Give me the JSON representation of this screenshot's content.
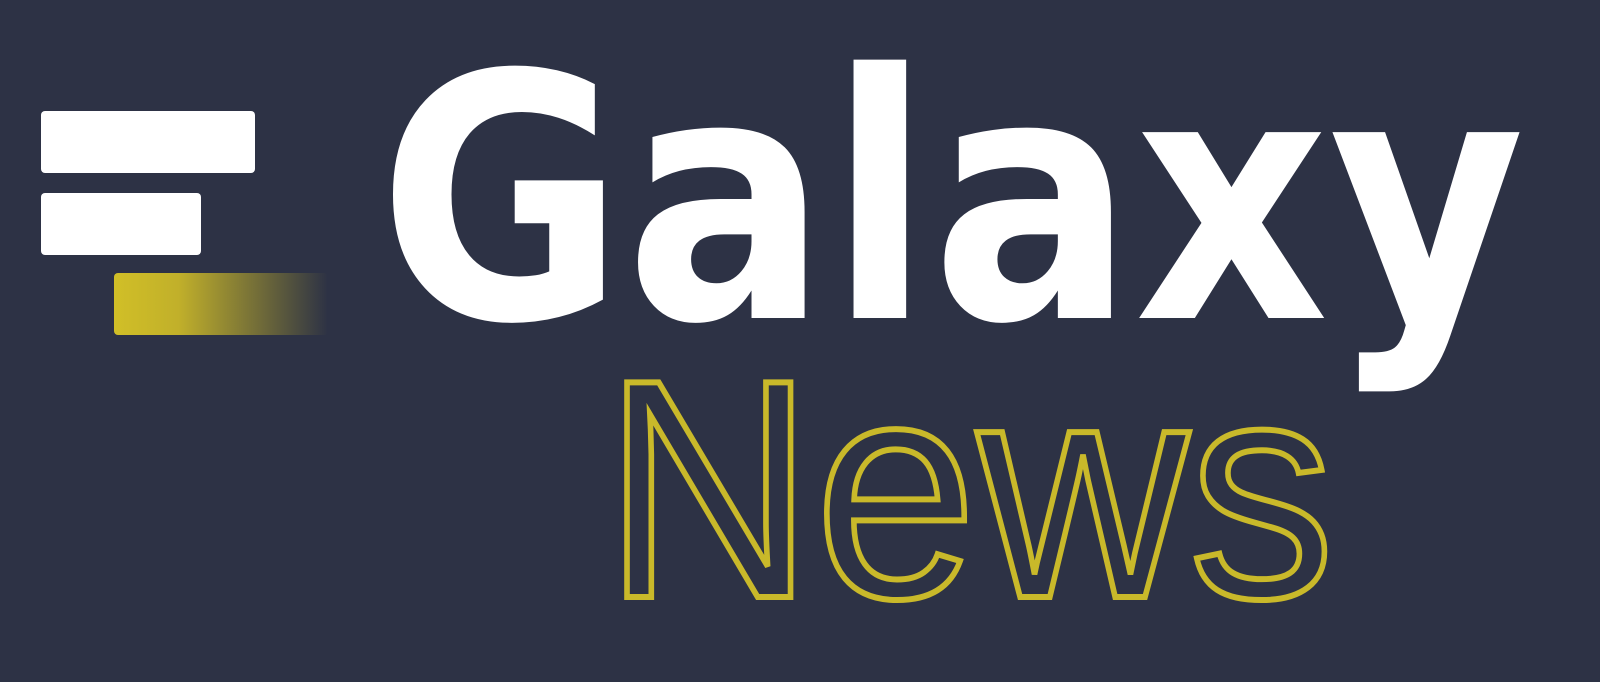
{
  "logo": {
    "title": "Galaxy",
    "subtitle": "News"
  }
}
